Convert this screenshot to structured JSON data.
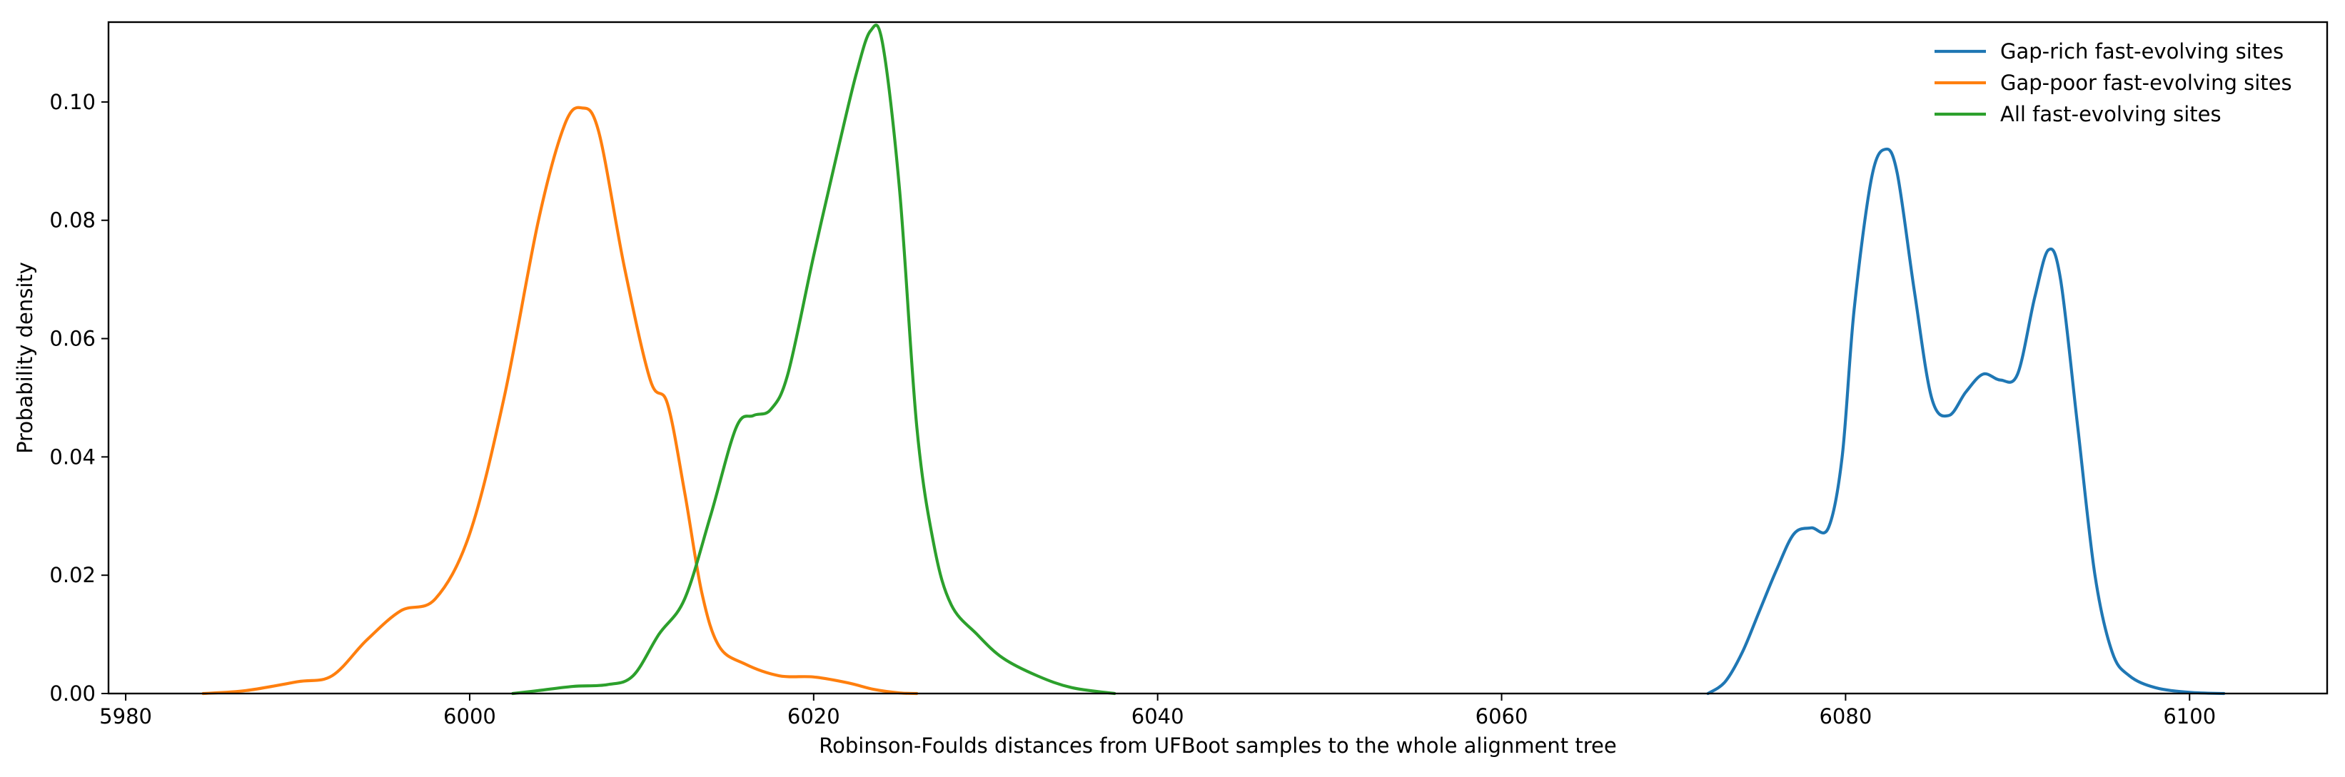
{
  "chart_data": {
    "type": "line",
    "title": "",
    "xlabel": "Robinson-Foulds distances from UFBoot samples to the whole alignment tree",
    "ylabel": "Probability density",
    "xlim": [
      5979,
      6108
    ],
    "ylim": [
      0,
      0.1135
    ],
    "xticks": [
      5980,
      6000,
      6020,
      6040,
      6060,
      6080,
      6100
    ],
    "yticks": [
      0.0,
      0.02,
      0.04,
      0.06,
      0.08,
      0.1
    ],
    "xtick_labels": [
      "5980",
      "6000",
      "6020",
      "6040",
      "6060",
      "6080",
      "6100"
    ],
    "ytick_labels": [
      "0.00",
      "0.02",
      "0.04",
      "0.06",
      "0.08",
      "0.10"
    ],
    "grid": false,
    "legend_position": "top-right",
    "series": [
      {
        "name": "Gap-rich fast-evolving sites",
        "color": "#1f77b4",
        "x": [
          6072,
          6073,
          6074,
          6075,
          6076,
          6077,
          6078,
          6079,
          6079.8,
          6080.5,
          6081.5,
          6082.3,
          6083,
          6084,
          6085,
          6086,
          6087,
          6088,
          6089,
          6090,
          6091,
          6091.8,
          6092.5,
          6093.5,
          6094.5,
          6095.5,
          6096.5,
          6098,
          6100,
          6102
        ],
        "y": [
          0.0,
          0.002,
          0.007,
          0.014,
          0.021,
          0.027,
          0.028,
          0.028,
          0.04,
          0.065,
          0.087,
          0.092,
          0.088,
          0.068,
          0.05,
          0.047,
          0.051,
          0.054,
          0.053,
          0.054,
          0.067,
          0.075,
          0.07,
          0.045,
          0.02,
          0.007,
          0.003,
          0.001,
          0.0002,
          0.0
        ]
      },
      {
        "name": "Gap-poor fast-evolving sites",
        "color": "#ff7f0e",
        "x": [
          5984.5,
          5987,
          5990,
          5992,
          5994,
          5996,
          5998,
          6000,
          6002,
          6004,
          6005.5,
          6006.5,
          6007.5,
          6009,
          6010.5,
          6011.5,
          6012.5,
          6013.5,
          6014.5,
          6016,
          6018,
          6020,
          6022,
          6023.5,
          6025,
          6026
        ],
        "y": [
          0.0,
          0.0005,
          0.002,
          0.003,
          0.009,
          0.014,
          0.016,
          0.027,
          0.05,
          0.08,
          0.096,
          0.099,
          0.095,
          0.072,
          0.053,
          0.049,
          0.034,
          0.017,
          0.008,
          0.005,
          0.003,
          0.0028,
          0.0018,
          0.0007,
          0.0001,
          0.0
        ]
      },
      {
        "name": "All fast-evolving sites",
        "color": "#2ca02c",
        "x": [
          6002.5,
          6004,
          6006,
          6008,
          6009.5,
          6011,
          6012.5,
          6014,
          6015.5,
          6016.5,
          6017.5,
          6018.5,
          6020,
          6021.5,
          6022.5,
          6023.3,
          6024,
          6025,
          6026,
          6027,
          6028,
          6029.5,
          6031,
          6033,
          6035,
          6037.5
        ],
        "y": [
          0.0,
          0.0005,
          0.0012,
          0.0015,
          0.003,
          0.01,
          0.016,
          0.03,
          0.045,
          0.047,
          0.048,
          0.054,
          0.074,
          0.093,
          0.105,
          0.112,
          0.11,
          0.085,
          0.045,
          0.025,
          0.015,
          0.01,
          0.006,
          0.003,
          0.001,
          0.0
        ]
      }
    ]
  }
}
